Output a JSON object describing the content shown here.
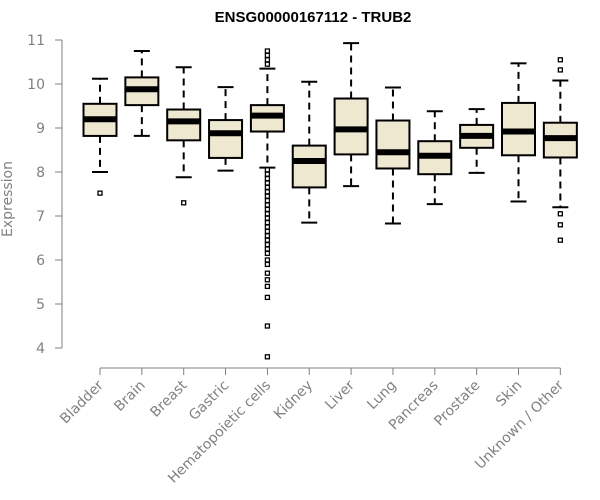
{
  "chart_data": {
    "type": "boxplot",
    "title": "ENSG00000167112 - TRUB2",
    "ylabel": "Expression",
    "xlabel": "",
    "ylim": [
      3.7,
      11.1
    ],
    "yticks": [
      4,
      5,
      6,
      7,
      8,
      9,
      10,
      11
    ],
    "box_color": "#efe8d0",
    "categories": [
      "Bladder",
      "Brain",
      "Breast",
      "Gastric",
      "Hematopoietic cells",
      "Kidney",
      "Liver",
      "Lung",
      "Pancreas",
      "Prostate",
      "Skin",
      "Unknown / Other"
    ],
    "boxes": [
      {
        "whisker_low": 8.0,
        "q1": 8.82,
        "median": 9.2,
        "q3": 9.55,
        "whisker_high": 10.12,
        "outliers": [
          7.52
        ]
      },
      {
        "whisker_low": 8.82,
        "q1": 9.52,
        "median": 9.88,
        "q3": 10.15,
        "whisker_high": 10.75,
        "outliers": []
      },
      {
        "whisker_low": 7.88,
        "q1": 8.72,
        "median": 9.15,
        "q3": 9.42,
        "whisker_high": 10.38,
        "outliers": [
          7.3
        ]
      },
      {
        "whisker_low": 8.03,
        "q1": 8.32,
        "median": 8.88,
        "q3": 9.18,
        "whisker_high": 9.93,
        "outliers": []
      },
      {
        "whisker_low": 8.1,
        "q1": 8.92,
        "median": 9.28,
        "q3": 9.52,
        "whisker_high": 10.35,
        "outliers": [
          10.75,
          10.65,
          10.55,
          10.45,
          8.05,
          7.95,
          7.85,
          7.75,
          7.65,
          7.55,
          7.45,
          7.35,
          7.25,
          7.15,
          7.05,
          6.95,
          6.85,
          6.75,
          6.65,
          6.55,
          6.45,
          6.35,
          6.25,
          6.15,
          6.0,
          5.9,
          5.7,
          5.55,
          5.4,
          5.15,
          4.5,
          3.8
        ]
      },
      {
        "whisker_low": 6.85,
        "q1": 7.65,
        "median": 8.25,
        "q3": 8.6,
        "whisker_high": 10.05,
        "outliers": []
      },
      {
        "whisker_low": 7.68,
        "q1": 8.4,
        "median": 8.97,
        "q3": 9.67,
        "whisker_high": 10.93,
        "outliers": []
      },
      {
        "whisker_low": 6.83,
        "q1": 8.08,
        "median": 8.45,
        "q3": 9.17,
        "whisker_high": 9.92,
        "outliers": []
      },
      {
        "whisker_low": 7.27,
        "q1": 7.95,
        "median": 8.37,
        "q3": 8.7,
        "whisker_high": 9.38,
        "outliers": []
      },
      {
        "whisker_low": 7.98,
        "q1": 8.55,
        "median": 8.82,
        "q3": 9.07,
        "whisker_high": 9.43,
        "outliers": []
      },
      {
        "whisker_low": 7.33,
        "q1": 8.38,
        "median": 8.92,
        "q3": 9.57,
        "whisker_high": 10.47,
        "outliers": []
      },
      {
        "whisker_low": 7.2,
        "q1": 8.33,
        "median": 8.77,
        "q3": 9.12,
        "whisker_high": 10.08,
        "outliers": [
          10.55,
          10.32,
          7.05,
          6.8,
          6.45
        ]
      }
    ]
  }
}
